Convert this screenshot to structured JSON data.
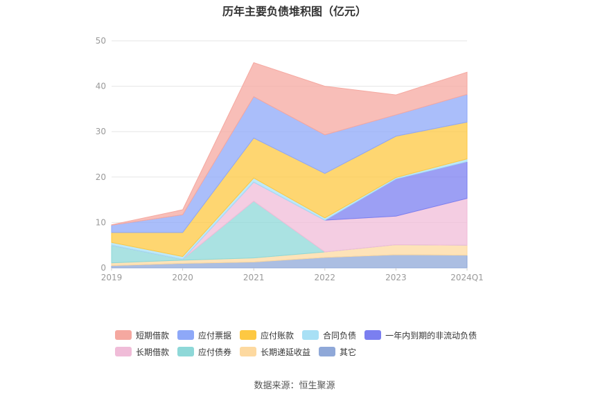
{
  "source_text": "数据来源：恒生聚源",
  "chart_data": {
    "type": "area",
    "stacked": true,
    "title": "历年主要负债堆积图（亿元）",
    "categories": [
      "2019",
      "2020",
      "2021",
      "2022",
      "2023",
      "2024Q1"
    ],
    "ylim": [
      0,
      50
    ],
    "yticks": [
      0,
      10,
      20,
      30,
      40,
      50
    ],
    "grid": true,
    "legend_position": "bottom",
    "series": [
      {
        "name": "其它",
        "color": "#8fa8d8",
        "values": [
          0.5,
          1.0,
          1.3,
          2.3,
          2.9,
          2.8
        ]
      },
      {
        "name": "长期递延收益",
        "color": "#fdd9a0",
        "values": [
          0.6,
          0.7,
          0.9,
          1.2,
          2.2,
          2.2
        ]
      },
      {
        "name": "应付债券",
        "color": "#8ed8d8",
        "values": [
          3.9,
          0.2,
          12.5,
          0.0,
          0.0,
          0.0
        ]
      },
      {
        "name": "长期借款",
        "color": "#f0bcd8",
        "values": [
          0.0,
          0.0,
          4.2,
          7.0,
          6.3,
          10.3
        ]
      },
      {
        "name": "一年内到期的非流动负债",
        "color": "#7b7ff0",
        "values": [
          0.0,
          0.0,
          0.0,
          0.0,
          8.2,
          8.1
        ]
      },
      {
        "name": "合同负债",
        "color": "#a8e0f5",
        "values": [
          0.6,
          0.6,
          0.9,
          0.5,
          0.3,
          0.6
        ]
      },
      {
        "name": "应付账款",
        "color": "#fdc842",
        "values": [
          2.2,
          5.3,
          8.8,
          9.8,
          9.1,
          8.1
        ]
      },
      {
        "name": "应付票据",
        "color": "#8ea8f8",
        "values": [
          1.6,
          3.9,
          9.1,
          8.5,
          4.7,
          6.1
        ]
      },
      {
        "name": "短期借款",
        "color": "#f5a8a0",
        "values": [
          0.1,
          1.1,
          7.5,
          10.7,
          4.4,
          4.9
        ]
      }
    ]
  },
  "legend_rows": [
    [
      "短期借款",
      "应付票据",
      "应付账款",
      "合同负债",
      "一年内到期的非流动负债"
    ],
    [
      "长期借款",
      "应付债券",
      "长期递延收益",
      "其它"
    ]
  ]
}
